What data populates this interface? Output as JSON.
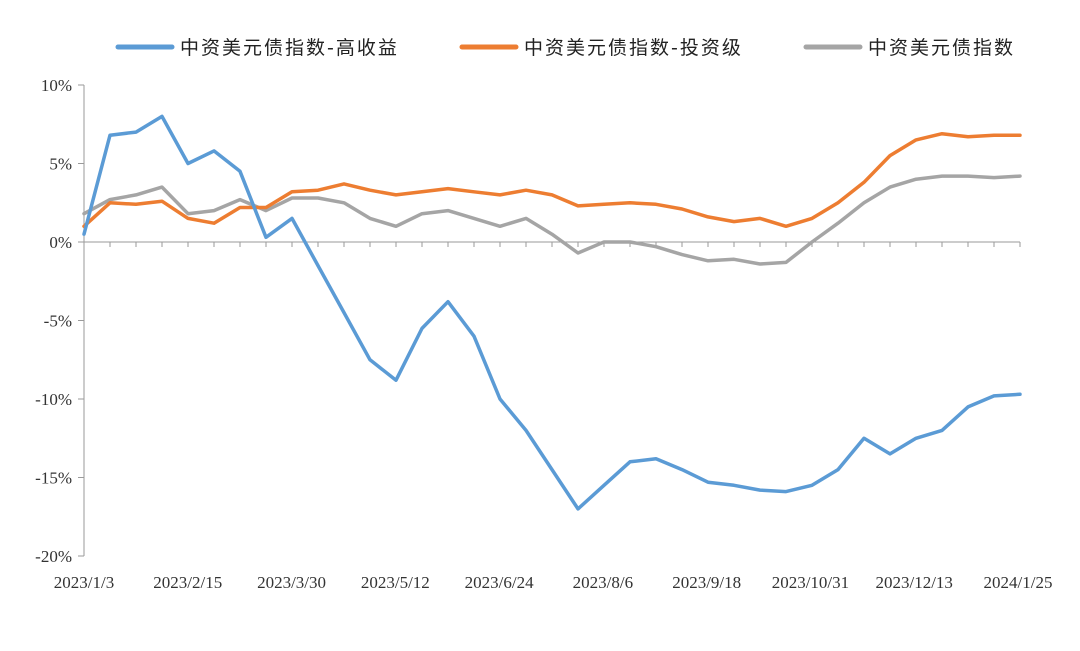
{
  "chart_data": {
    "type": "line",
    "title": "",
    "xlabel": "",
    "ylabel": "",
    "x_tick_labels": [
      "2023/1/3",
      "2023/2/15",
      "2023/3/30",
      "2023/5/12",
      "2023/6/24",
      "2023/8/6",
      "2023/9/18",
      "2023/10/31",
      "2023/12/13",
      "2024/1/25"
    ],
    "y_tick_labels": [
      "10%",
      "5%",
      "0%",
      "-5%",
      "-10%",
      "-15%",
      "-20%"
    ],
    "ylim": [
      -20,
      10
    ],
    "y_unit": "%",
    "grid": false,
    "legend_position": "top",
    "x": [
      "2023/1/3",
      "2023/1/13",
      "2023/1/24",
      "2023/2/3",
      "2023/2/15",
      "2023/2/25",
      "2023/3/8",
      "2023/3/19",
      "2023/3/30",
      "2023/4/10",
      "2023/4/21",
      "2023/5/1",
      "2023/5/12",
      "2023/5/22",
      "2023/6/2",
      "2023/6/13",
      "2023/6/24",
      "2023/7/4",
      "2023/7/15",
      "2023/7/26",
      "2023/8/6",
      "2023/8/16",
      "2023/8/27",
      "2023/9/7",
      "2023/9/18",
      "2023/9/28",
      "2023/10/9",
      "2023/10/20",
      "2023/10/31",
      "2023/11/10",
      "2023/11/21",
      "2023/12/2",
      "2023/12/13",
      "2023/12/23",
      "2024/1/3",
      "2024/1/14",
      "2024/1/25"
    ],
    "series": [
      {
        "name": "中资美元债指数-高收益",
        "color": "#5b9bd5",
        "values": [
          0.5,
          6.8,
          7.0,
          8.0,
          5.0,
          5.8,
          4.5,
          0.3,
          1.5,
          -1.5,
          -4.5,
          -7.5,
          -8.8,
          -5.5,
          -3.8,
          -6.0,
          -10.0,
          -12.0,
          -14.5,
          -17.0,
          -15.5,
          -14.0,
          -13.8,
          -14.5,
          -15.3,
          -15.5,
          -15.8,
          -15.9,
          -15.5,
          -14.5,
          -12.5,
          -13.5,
          -12.5,
          -12.0,
          -10.5,
          -9.8,
          -9.7
        ]
      },
      {
        "name": "中资美元债指数-投资级",
        "color": "#ed7d31",
        "values": [
          1.0,
          2.5,
          2.4,
          2.6,
          1.5,
          1.2,
          2.2,
          2.2,
          3.2,
          3.3,
          3.7,
          3.3,
          3.0,
          3.2,
          3.4,
          3.2,
          3.0,
          3.3,
          3.0,
          2.3,
          2.4,
          2.5,
          2.4,
          2.1,
          1.6,
          1.3,
          1.5,
          1.0,
          1.5,
          2.5,
          3.8,
          5.5,
          6.5,
          6.9,
          6.7,
          6.8,
          6.8
        ]
      },
      {
        "name": "中资美元债指数",
        "color": "#a5a5a5",
        "values": [
          1.8,
          2.7,
          3.0,
          3.5,
          1.8,
          2.0,
          2.7,
          2.0,
          2.8,
          2.8,
          2.5,
          1.5,
          1.0,
          1.8,
          2.0,
          1.5,
          1.0,
          1.5,
          0.5,
          -0.7,
          0.0,
          0.0,
          -0.3,
          -0.8,
          -1.2,
          -1.1,
          -1.4,
          -1.3,
          0.0,
          1.2,
          2.5,
          3.5,
          4.0,
          4.2,
          4.2,
          4.1,
          4.2
        ]
      }
    ]
  }
}
